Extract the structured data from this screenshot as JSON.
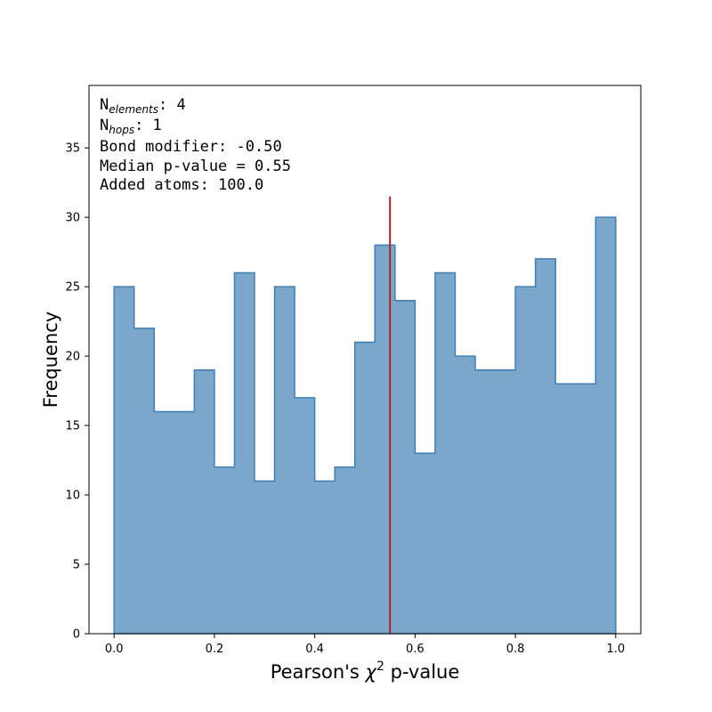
{
  "chart_data": {
    "type": "histogram",
    "xlabel_prefix": "Pearson's ",
    "xlabel_symbol": "χ",
    "xlabel_superscript": "2",
    "xlabel_suffix": " p-value",
    "ylabel": "Frequency",
    "xlim": [
      -0.05,
      1.05
    ],
    "ylim": [
      0,
      39.5
    ],
    "xticks": [
      0.0,
      0.2,
      0.4,
      0.6,
      0.8,
      1.0
    ],
    "xtick_labels": [
      "0.0",
      "0.2",
      "0.4",
      "0.6",
      "0.8",
      "1.0"
    ],
    "yticks": [
      0,
      5,
      10,
      15,
      20,
      25,
      30,
      35
    ],
    "ytick_labels": [
      "0",
      "5",
      "10",
      "15",
      "20",
      "25",
      "30",
      "35"
    ],
    "bin_edges": [
      0.0,
      0.04,
      0.08,
      0.12,
      0.16,
      0.2,
      0.24,
      0.28,
      0.32,
      0.36,
      0.4,
      0.44,
      0.48,
      0.52,
      0.56,
      0.6,
      0.64,
      0.68,
      0.72,
      0.76,
      0.8,
      0.84,
      0.88,
      0.92,
      0.96,
      1.0
    ],
    "counts": [
      25,
      22,
      16,
      16,
      19,
      12,
      26,
      11,
      25,
      17,
      11,
      12,
      21,
      28,
      24,
      13,
      26,
      20,
      19,
      19,
      25,
      27,
      18,
      18,
      30
    ],
    "median_line": {
      "x": 0.55,
      "y_top": 31.5,
      "color": "#b22222"
    },
    "fill_color": "#7ba7cb",
    "edge_color": "#3f7fb8",
    "annotations": {
      "n_elements_prefix": "N",
      "n_elements_sub": "elements",
      "n_elements_value": ": 4",
      "n_hops_prefix": "N",
      "n_hops_sub": "hops",
      "n_hops_value": ": 1",
      "bond_modifier": "Bond modifier: -0.50",
      "median_pvalue": "Median p-value = 0.55",
      "added_atoms": "Added atoms: 100.0"
    }
  }
}
